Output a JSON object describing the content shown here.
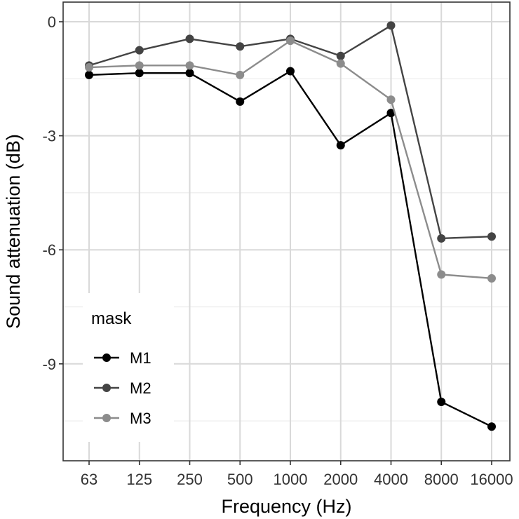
{
  "chart_data": {
    "type": "line",
    "title": "",
    "xlabel": "Frequency (Hz)",
    "ylabel": "Sound attenuation (dB)",
    "categories": [
      "63",
      "125",
      "250",
      "500",
      "1000",
      "2000",
      "4000",
      "8000",
      "16000"
    ],
    "ylim": [
      -11.5,
      0.4
    ],
    "y_ticks": [
      0,
      -3,
      -6,
      -9
    ],
    "y_tick_labels": [
      "0",
      "-3",
      "-6",
      "-9"
    ],
    "grid": true,
    "legend": {
      "title": "mask",
      "position": "bottom-left inside"
    },
    "series": [
      {
        "name": "M1",
        "color": "#000000",
        "values": [
          -1.4,
          -1.35,
          -1.35,
          -2.1,
          -1.3,
          -3.25,
          -2.4,
          -10.0,
          -10.65
        ]
      },
      {
        "name": "M2",
        "color": "#444444",
        "values": [
          -1.15,
          -0.75,
          -0.45,
          -0.65,
          -0.45,
          -0.9,
          -0.1,
          -5.7,
          -5.65
        ]
      },
      {
        "name": "M3",
        "color": "#8c8c8c",
        "values": [
          -1.2,
          -1.15,
          -1.15,
          -1.4,
          -0.5,
          -1.1,
          -2.05,
          -6.65,
          -6.75
        ]
      }
    ]
  }
}
